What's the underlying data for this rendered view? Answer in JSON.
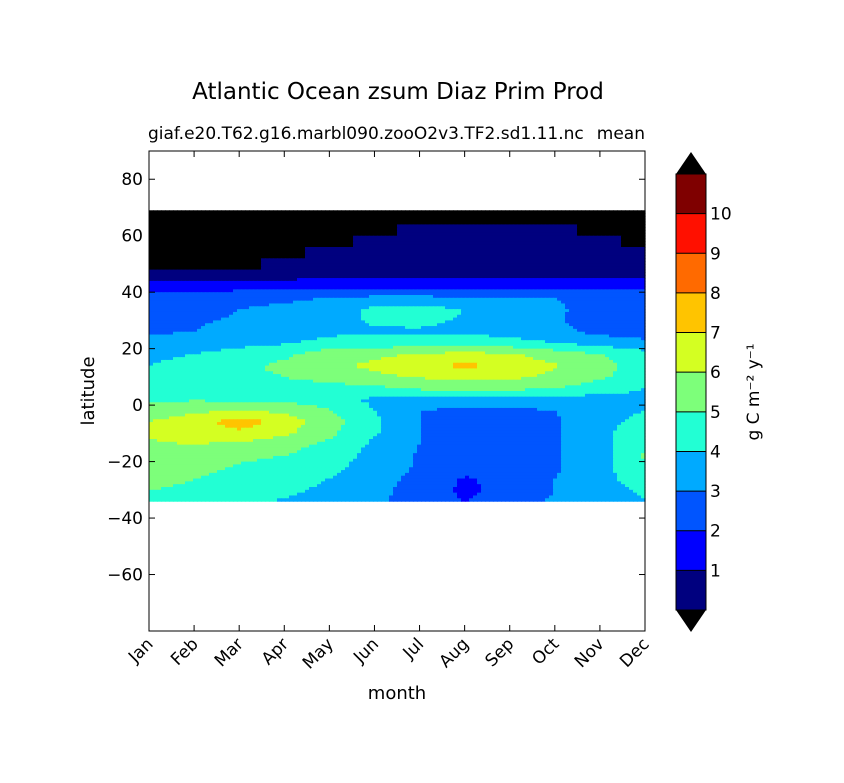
{
  "chart_data": {
    "type": "heatmap",
    "title": "Atlantic Ocean zsum Diaz Prim Prod",
    "subtitle_left": "giaf.e20.T62.g16.marbl090.zooO2v3.TF2.sd1.11.nc",
    "subtitle_right": "mean",
    "xlabel": "month",
    "ylabel": "latitude",
    "x_ticks": [
      "Jan",
      "Feb",
      "Mar",
      "Apr",
      "May",
      "Jun",
      "Jul",
      "Aug",
      "Sep",
      "Oct",
      "Nov",
      "Dec"
    ],
    "y_ticks": [
      80,
      60,
      40,
      20,
      0,
      -20,
      -40,
      -60
    ],
    "ylim": [
      -80,
      90
    ],
    "data_lat_range": [
      -34,
      69
    ],
    "colorbar": {
      "label": "g C m⁻² y⁻¹",
      "levels": [
        0,
        1,
        2,
        3,
        4,
        5,
        6,
        7,
        8,
        9,
        10,
        11
      ],
      "tick_labels": [
        "1",
        "2",
        "3",
        "4",
        "5",
        "6",
        "7",
        "8",
        "9",
        "10"
      ],
      "extend": "both",
      "under_color": "#000000",
      "over_color": "#000000",
      "colors": [
        "#00007f",
        "#0000ff",
        "#0055ff",
        "#00aaff",
        "#22ffd4",
        "#7dff7a",
        "#d4ff22",
        "#ffc400",
        "#ff6a00",
        "#ff1000",
        "#7f0000"
      ]
    },
    "grid": false,
    "lat": [
      69,
      66,
      62,
      58,
      54,
      50,
      46,
      42,
      38,
      34,
      30,
      26,
      22,
      18,
      14,
      10,
      6,
      2,
      -2,
      -6,
      -10,
      -14,
      -18,
      -22,
      -26,
      -30,
      -33
    ],
    "values": [
      [
        -1,
        -1,
        -1,
        -1,
        -1,
        -1,
        -1,
        -1,
        -1,
        -1,
        -1,
        -1
      ],
      [
        -1,
        -1,
        -1,
        -1,
        -1,
        -1,
        -1,
        -1,
        -1,
        -1,
        -1,
        -1
      ],
      [
        -1,
        -1,
        -1,
        -1,
        -1,
        -1,
        0.4,
        0.5,
        0.4,
        0.2,
        -1,
        -1
      ],
      [
        -1,
        -1,
        -1,
        -1,
        -1,
        0.4,
        0.6,
        0.6,
        0.6,
        0.5,
        0.3,
        -1
      ],
      [
        -1,
        -1,
        -1,
        -1,
        0.4,
        0.6,
        0.6,
        0.6,
        0.6,
        0.6,
        0.4,
        0.3
      ],
      [
        -1,
        -1,
        -1,
        0.3,
        0.6,
        0.6,
        0.7,
        0.7,
        0.7,
        0.7,
        0.6,
        0.6
      ],
      [
        0.7,
        0.4,
        0.6,
        0.6,
        0.7,
        0.7,
        0.8,
        0.8,
        0.8,
        0.8,
        0.8,
        0.8
      ],
      [
        1.2,
        1.5,
        1.6,
        1.6,
        1.7,
        1.8,
        1.8,
        1.8,
        1.8,
        1.8,
        1.8,
        1.8
      ],
      [
        2.5,
        2.6,
        2.7,
        2.8,
        3.0,
        3.2,
        3.2,
        3.1,
        3.0,
        3.0,
        2.7,
        2.5
      ],
      [
        2.5,
        2.7,
        3.0,
        3.2,
        3.6,
        4.2,
        4.3,
        4.0,
        3.6,
        3.2,
        2.5,
        2.3
      ],
      [
        2.7,
        2.9,
        3.1,
        3.4,
        3.7,
        4.1,
        4.2,
        3.9,
        3.6,
        3.1,
        2.5,
        2.3
      ],
      [
        2.9,
        3.0,
        3.3,
        3.5,
        3.8,
        3.9,
        3.9,
        3.8,
        3.6,
        3.3,
        2.7,
        2.6
      ],
      [
        3.2,
        3.5,
        3.7,
        3.9,
        4.3,
        4.4,
        4.5,
        4.6,
        4.4,
        4.0,
        3.6,
        3.2
      ],
      [
        3.7,
        4.0,
        4.4,
        4.8,
        5.6,
        5.8,
        6.1,
        6.3,
        6.1,
        5.6,
        5.0,
        4.4
      ],
      [
        4.0,
        4.5,
        4.8,
        5.2,
        5.8,
        6.2,
        6.6,
        7.3,
        6.5,
        6.1,
        5.4,
        4.5
      ],
      [
        4.2,
        4.6,
        4.8,
        5.0,
        5.4,
        5.8,
        6.1,
        6.2,
        6.2,
        5.8,
        5.2,
        4.4
      ],
      [
        4.6,
        4.6,
        4.6,
        4.6,
        4.6,
        4.8,
        5.2,
        5.4,
        5.3,
        5.0,
        4.5,
        4.0
      ],
      [
        4.8,
        4.9,
        4.8,
        4.7,
        4.4,
        3.8,
        3.6,
        3.6,
        3.6,
        3.6,
        3.6,
        3.8
      ],
      [
        5.4,
        5.8,
        6.0,
        5.8,
        5.1,
        4.0,
        3.0,
        2.8,
        2.8,
        3.0,
        3.5,
        4.0
      ],
      [
        6.0,
        6.6,
        7.6,
        6.6,
        5.4,
        4.2,
        3.0,
        2.6,
        2.6,
        2.9,
        3.6,
        4.4
      ],
      [
        6.1,
        6.4,
        6.7,
        6.2,
        5.2,
        4.1,
        3.0,
        2.6,
        2.6,
        2.9,
        3.7,
        4.8
      ],
      [
        5.9,
        6.0,
        5.8,
        5.3,
        4.8,
        3.8,
        3.0,
        2.6,
        2.6,
        2.9,
        3.6,
        5.0
      ],
      [
        5.8,
        5.6,
        5.2,
        5.0,
        4.6,
        3.6,
        2.9,
        2.6,
        2.6,
        2.9,
        3.6,
        5.1
      ],
      [
        5.6,
        5.4,
        4.9,
        4.6,
        4.3,
        3.5,
        2.9,
        2.5,
        2.6,
        2.9,
        3.6,
        5.0
      ],
      [
        5.4,
        5.0,
        4.6,
        4.4,
        4.0,
        3.4,
        2.7,
        1.9,
        2.3,
        3.0,
        3.6,
        4.6
      ],
      [
        5.0,
        4.8,
        4.4,
        4.2,
        3.8,
        3.3,
        2.6,
        1.8,
        2.3,
        3.0,
        3.6,
        4.2
      ],
      [
        4.4,
        4.4,
        4.2,
        4.0,
        3.7,
        3.2,
        2.6,
        1.9,
        2.6,
        3.1,
        3.6,
        4.0
      ]
    ]
  }
}
